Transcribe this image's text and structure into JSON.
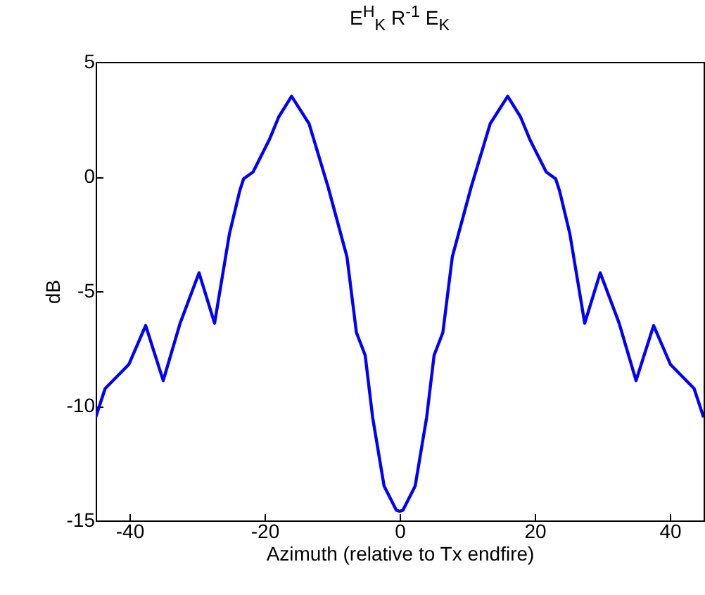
{
  "chart_data": {
    "type": "line",
    "title": "E$^{H}$$_{K}$ R$^{-1}$ E$_{K}$",
    "xlabel": "Azimuth (relative to Tx endfire)",
    "ylabel": "dB",
    "x": [
      -45,
      -43.6,
      -40.1,
      -37.6,
      -35,
      -32.5,
      -31.1,
      -29.7,
      -27.4,
      -25.2,
      -23.7,
      -23.1,
      -21.7,
      -19.3,
      -17.9,
      -16,
      -13.4,
      -10.6,
      -7.8,
      -6.4,
      -5.1,
      -4,
      -2.3,
      -0.5,
      0,
      0.5,
      2.3,
      4,
      5.1,
      6.4,
      7.8,
      10.6,
      13.4,
      16,
      17.9,
      19.3,
      21.7,
      23.1,
      23.7,
      25.2,
      27.4,
      29.7,
      31.1,
      32.5,
      35,
      37.6,
      40.1,
      43.6,
      45
    ],
    "series": [
      {
        "color": "#0000ff",
        "values": [
          -10.5,
          -9.25,
          -8.2,
          -6.5,
          -8.9,
          -6.4,
          -5.3,
          -4.2,
          -6.4,
          -2.5,
          -0.65,
          -0.1,
          0.2,
          1.6,
          2.6,
          3.5,
          2.3,
          -0.45,
          -3.5,
          -6.8,
          -7.8,
          -10.5,
          -13.5,
          -14.55,
          -14.6,
          -14.55,
          -13.5,
          -10.5,
          -7.8,
          -6.8,
          -3.5,
          -0.45,
          2.3,
          3.5,
          2.6,
          1.6,
          0.2,
          -0.1,
          -0.65,
          -2.5,
          -6.4,
          -4.2,
          -5.3,
          -6.4,
          -8.9,
          -6.5,
          -8.2,
          -9.25,
          -10.5
        ]
      }
    ],
    "xlim": [
      -45,
      45
    ],
    "ylim": [
      -15,
      5
    ],
    "xticks": [
      -40,
      -20,
      0,
      20,
      40
    ],
    "yticks": [
      -15,
      -10,
      -5,
      0,
      5
    ],
    "grid": false,
    "line_style": "solid"
  }
}
